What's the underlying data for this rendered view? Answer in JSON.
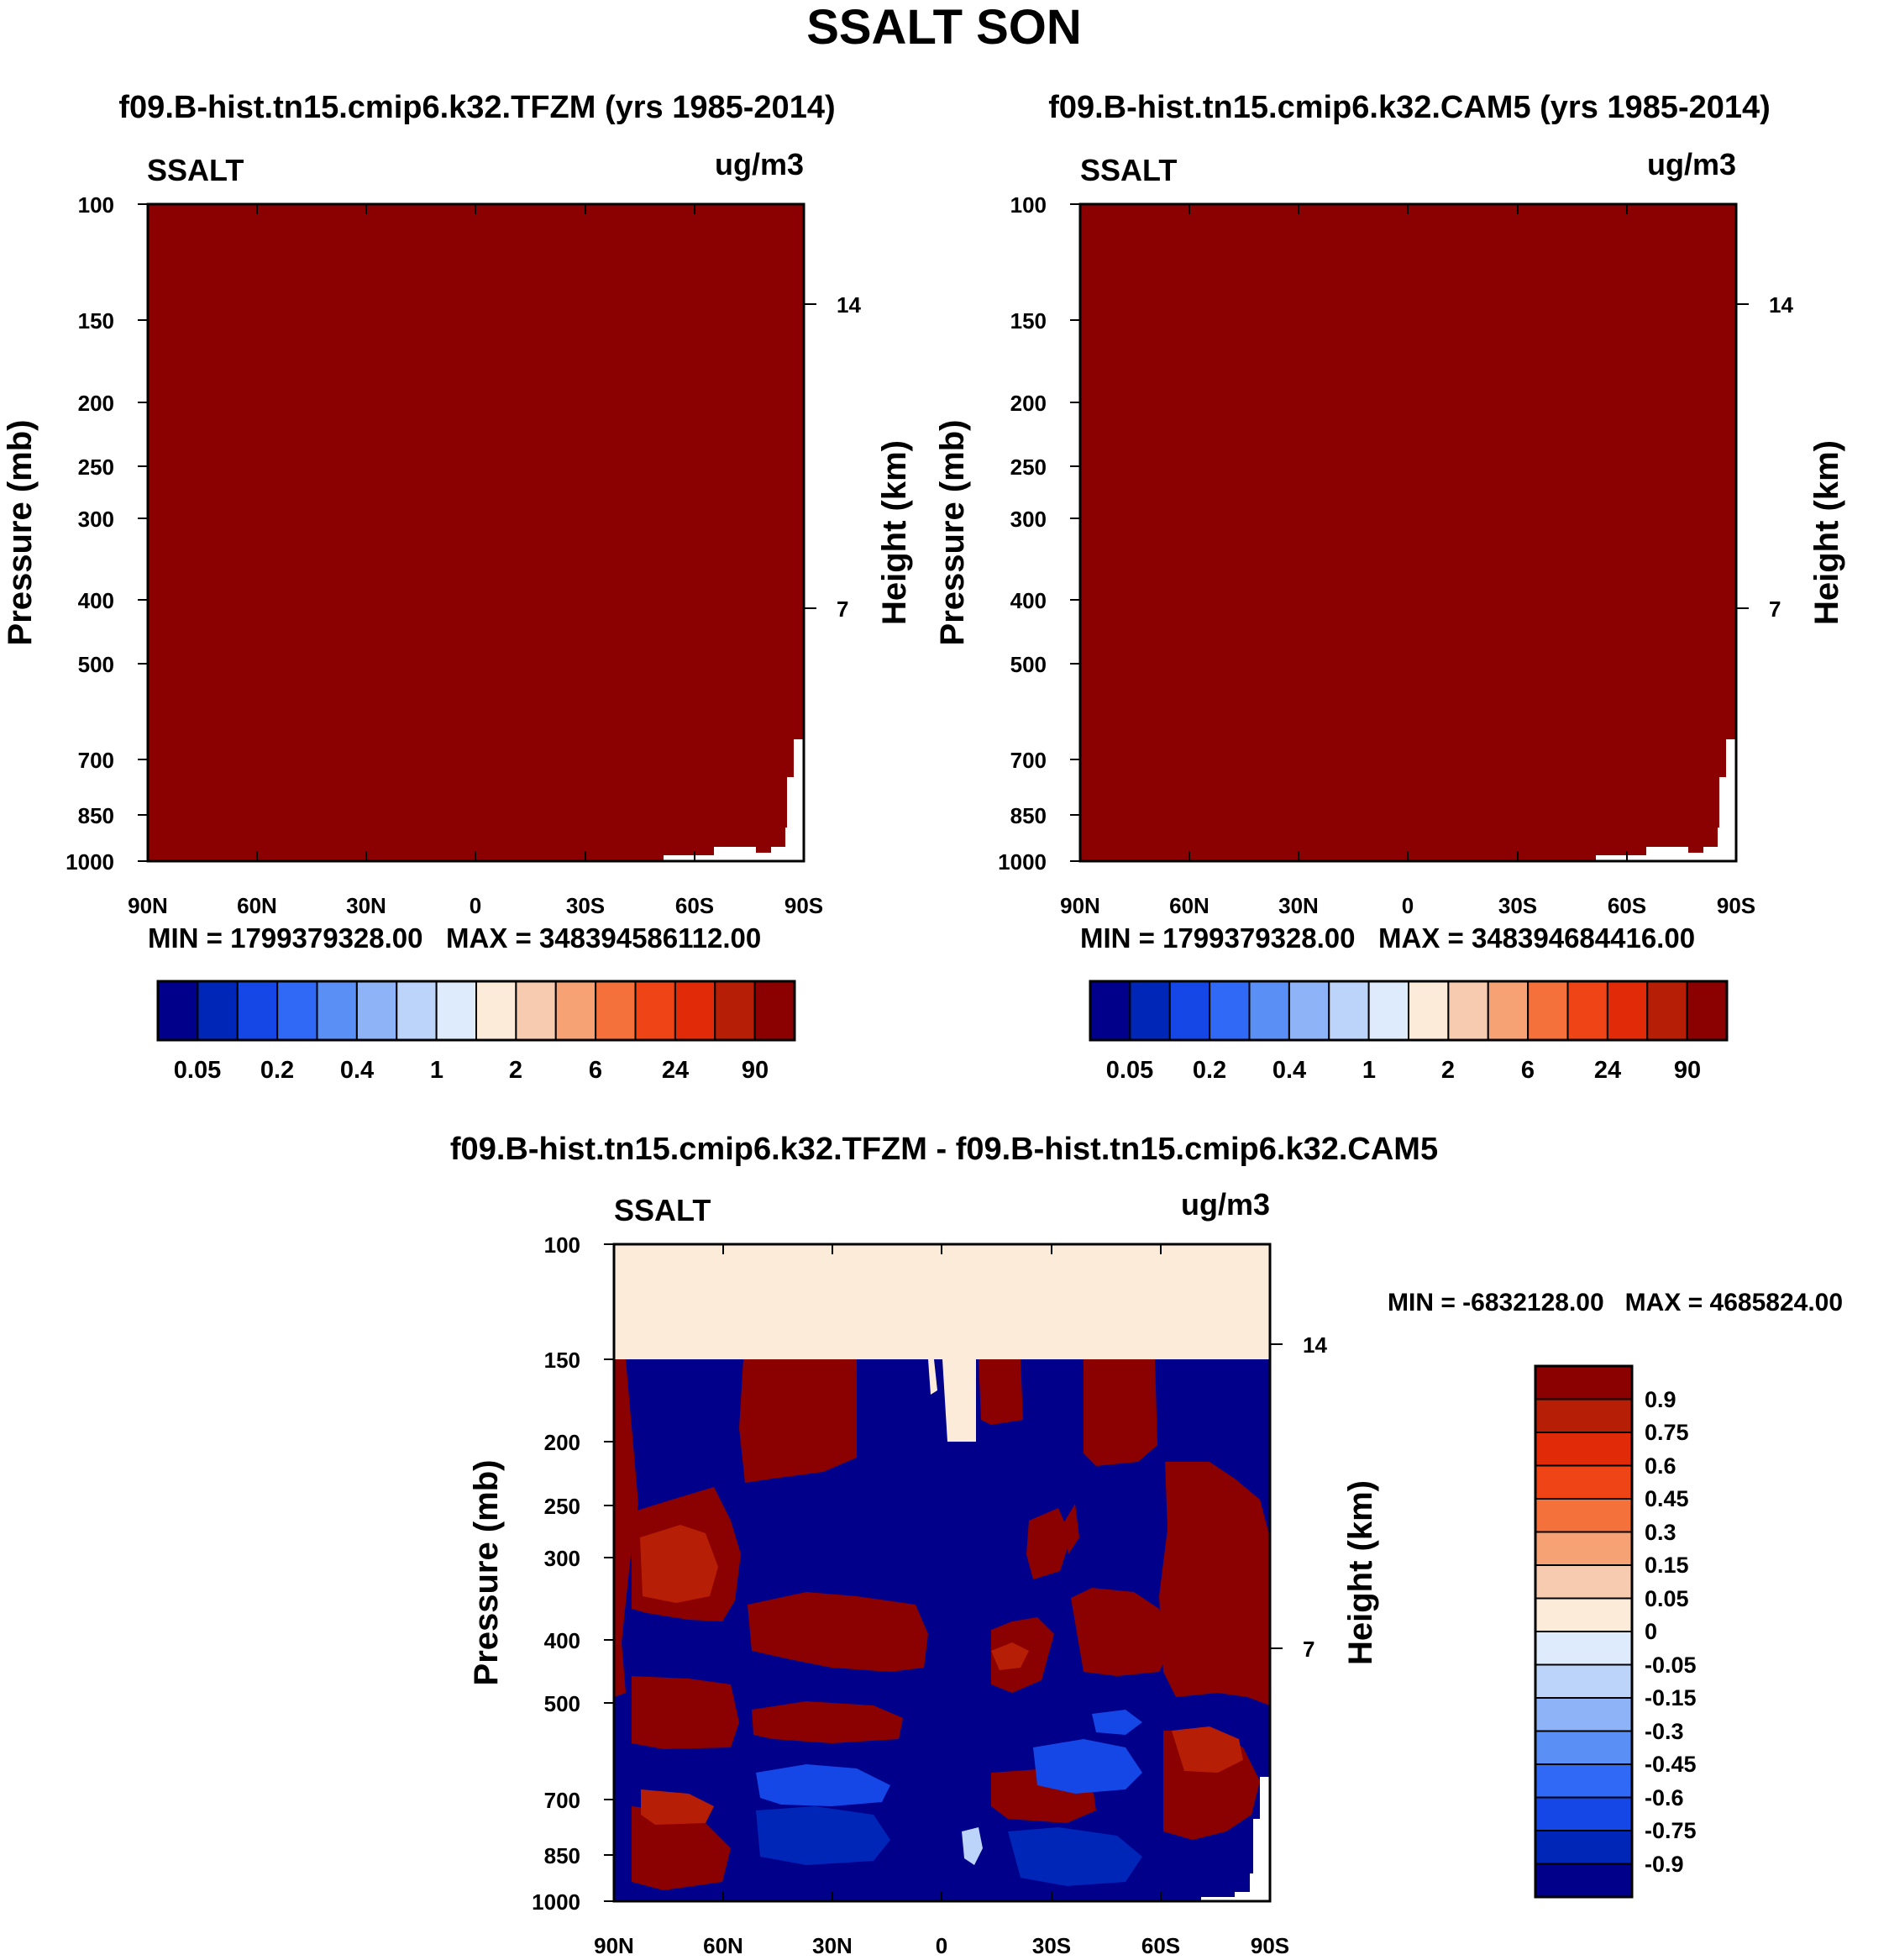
{
  "page_title": "SSALT SON",
  "colors": {
    "frame": "#000000",
    "abs_levels": [
      "#00008a",
      "#0026b8",
      "#1447e6",
      "#2f69f5",
      "#5a8ff5",
      "#8eb4f7",
      "#bcd4fa",
      "#deebfc",
      "#fdebd9",
      "#f7cbb0",
      "#f7a275",
      "#f4713b",
      "#ef4516",
      "#e02a08",
      "#b71e06",
      "#8b0000"
    ],
    "diff_levels": [
      "#00008a",
      "#0026b8",
      "#1447e6",
      "#2f69f5",
      "#5a8ff5",
      "#8eb4f7",
      "#bcd4fa",
      "#deebfc",
      "#fdebd9",
      "#f7cbb0",
      "#f7a275",
      "#f4713b",
      "#ef4516",
      "#e02a08",
      "#b71e06",
      "#8b0000"
    ]
  },
  "chart_data": [
    {
      "type": "heatmap",
      "title": "f09.B-hist.tn15.cmip6.k32.TFZM (yrs 1985-2014)",
      "left_label": "SSALT",
      "units": "ug/m3",
      "ylabel": "Pressure (mb)",
      "y2label": "Height (km)",
      "x_ticks": [
        "90N",
        "60N",
        "30N",
        "0",
        "30S",
        "60S",
        "90S"
      ],
      "y_ticks": [
        "100",
        "150",
        "200",
        "250",
        "300",
        "400",
        "500",
        "700",
        "850",
        "1000"
      ],
      "y2_ticks": [
        "14",
        "7"
      ],
      "ylim": [
        1000,
        100
      ],
      "xlim": [
        90,
        -90
      ],
      "y_scale": "log",
      "stats": "MIN = 1799379328.00   MAX = 348394586112.00",
      "field": "nearly uniform > 90 ug/m3 everywhere; small missing region near 90S below 700 mb",
      "colorbar_labels": [
        "0.05",
        "0.2",
        "0.4",
        "1",
        "2",
        "6",
        "24",
        "90"
      ]
    },
    {
      "type": "heatmap",
      "title": "f09.B-hist.tn15.cmip6.k32.CAM5 (yrs 1985-2014)",
      "left_label": "SSALT",
      "units": "ug/m3",
      "ylabel": "Pressure (mb)",
      "y2label": "Height (km)",
      "x_ticks": [
        "90N",
        "60N",
        "30N",
        "0",
        "30S",
        "60S",
        "90S"
      ],
      "y_ticks": [
        "100",
        "150",
        "200",
        "250",
        "300",
        "400",
        "500",
        "700",
        "850",
        "1000"
      ],
      "y2_ticks": [
        "14",
        "7"
      ],
      "ylim": [
        1000,
        100
      ],
      "xlim": [
        90,
        -90
      ],
      "y_scale": "log",
      "stats": "MIN = 1799379328.00   MAX = 348394684416.00",
      "field": "nearly uniform > 90 ug/m3 everywhere; small missing region near 90S below 700 mb",
      "colorbar_labels": [
        "0.05",
        "0.2",
        "0.4",
        "1",
        "2",
        "6",
        "24",
        "90"
      ]
    },
    {
      "type": "heatmap",
      "title": "f09.B-hist.tn15.cmip6.k32.TFZM - f09.B-hist.tn15.cmip6.k32.CAM5",
      "left_label": "SSALT",
      "units": "ug/m3",
      "ylabel": "Pressure (mb)",
      "y2label": "Height (km)",
      "x_ticks": [
        "90N",
        "60N",
        "30N",
        "0",
        "30S",
        "60S",
        "90S"
      ],
      "y_ticks": [
        "100",
        "150",
        "200",
        "250",
        "300",
        "400",
        "500",
        "700",
        "850",
        "1000"
      ],
      "y2_ticks": [
        "14",
        "7"
      ],
      "ylim": [
        1000,
        100
      ],
      "xlim": [
        90,
        -90
      ],
      "y_scale": "log",
      "stats": "MIN = -6832128.00   MAX = 4685824.00",
      "colorbar_labels": [
        "0.9",
        "0.75",
        "0.6",
        "0.45",
        "0.3",
        "0.15",
        "0.05",
        "0",
        "-0.05",
        "-0.15",
        "-0.3",
        "-0.45",
        "-0.6",
        "-0.75",
        "-0.9"
      ]
    }
  ]
}
